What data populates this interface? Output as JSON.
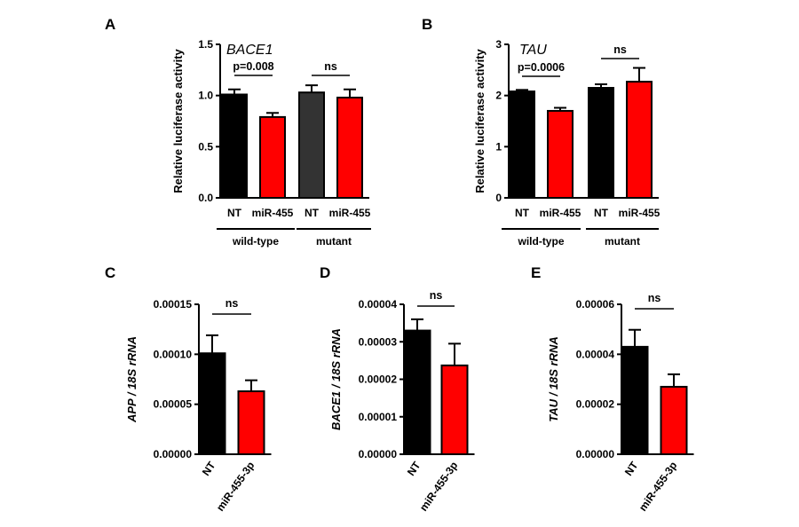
{
  "colors": {
    "black_bar": "#000000",
    "dark_bar": "#333333",
    "red_bar": "#ff0000"
  },
  "chart_data": [
    {
      "panel": "A",
      "type": "bar",
      "title": "BACE1",
      "ylabel": "Relative luciferase activity",
      "ylim": [
        0,
        1.5
      ],
      "yticks": [
        "0.0",
        "0.5",
        "1.0",
        "1.5"
      ],
      "categories": [
        "NT",
        "miR-455",
        "NT",
        "miR-455"
      ],
      "values": [
        1.01,
        0.79,
        1.03,
        0.98
      ],
      "errors": [
        0.05,
        0.04,
        0.07,
        0.08
      ],
      "bar_colors": [
        "#000000",
        "#ff0000",
        "#333333",
        "#ff0000"
      ],
      "groups": [
        {
          "label": "wild-type",
          "bars": [
            0,
            1
          ]
        },
        {
          "label": "mutant",
          "bars": [
            2,
            3
          ]
        }
      ],
      "annotations": [
        {
          "text": "p=0.008",
          "bars": [
            0,
            1
          ]
        },
        {
          "text": "ns",
          "bars": [
            2,
            3
          ]
        }
      ]
    },
    {
      "panel": "B",
      "type": "bar",
      "title": "TAU",
      "ylabel": "Relative luciferase activity",
      "ylim": [
        0,
        3
      ],
      "yticks": [
        "0",
        "1",
        "2",
        "3"
      ],
      "categories": [
        "NT",
        "miR-455",
        "NT",
        "miR-455"
      ],
      "values": [
        2.08,
        1.7,
        2.15,
        2.27
      ],
      "errors": [
        0.03,
        0.06,
        0.07,
        0.27
      ],
      "bar_colors": [
        "#000000",
        "#ff0000",
        "#000000",
        "#ff0000"
      ],
      "groups": [
        {
          "label": "wild-type",
          "bars": [
            0,
            1
          ]
        },
        {
          "label": "mutant",
          "bars": [
            2,
            3
          ]
        }
      ],
      "annotations": [
        {
          "text": "p=0.0006",
          "bars": [
            0,
            1
          ]
        },
        {
          "text": "ns",
          "bars": [
            2,
            3
          ]
        }
      ]
    },
    {
      "panel": "C",
      "type": "bar",
      "ylabel": "APP / 18S rRNA",
      "ylim": [
        0,
        0.00015
      ],
      "yticks": [
        "0.00000",
        "0.00005",
        "0.00010",
        "0.00015"
      ],
      "categories": [
        "NT",
        "miR-455-3p"
      ],
      "values": [
        0.000101,
        6.3e-05
      ],
      "errors": [
        1.8e-05,
        1.1e-05
      ],
      "bar_colors": [
        "#000000",
        "#ff0000"
      ],
      "annotations": [
        {
          "text": "ns",
          "bars": [
            0,
            1
          ]
        }
      ]
    },
    {
      "panel": "D",
      "type": "bar",
      "ylabel": "BACE1 / 18S rRNA",
      "ylim": [
        0,
        4e-05
      ],
      "yticks": [
        "0.00000",
        "0.00001",
        "0.00002",
        "0.00003",
        "0.00004"
      ],
      "categories": [
        "NT",
        "miR-455-3p"
      ],
      "values": [
        3.3e-05,
        2.37e-05
      ],
      "errors": [
        3e-06,
        5.8e-06
      ],
      "bar_colors": [
        "#000000",
        "#ff0000"
      ],
      "annotations": [
        {
          "text": "ns",
          "bars": [
            0,
            1
          ]
        }
      ]
    },
    {
      "panel": "E",
      "type": "bar",
      "ylabel": "TAU / 18S rRNA",
      "ylim": [
        0,
        6e-05
      ],
      "yticks": [
        "0.00000",
        "0.00002",
        "0.00004",
        "0.00006"
      ],
      "categories": [
        "NT",
        "miR-455-3p"
      ],
      "values": [
        4.3e-05,
        2.7e-05
      ],
      "errors": [
        6.8e-06,
        5e-06
      ],
      "bar_colors": [
        "#000000",
        "#ff0000"
      ],
      "annotations": [
        {
          "text": "ns",
          "bars": [
            0,
            1
          ]
        }
      ]
    }
  ]
}
